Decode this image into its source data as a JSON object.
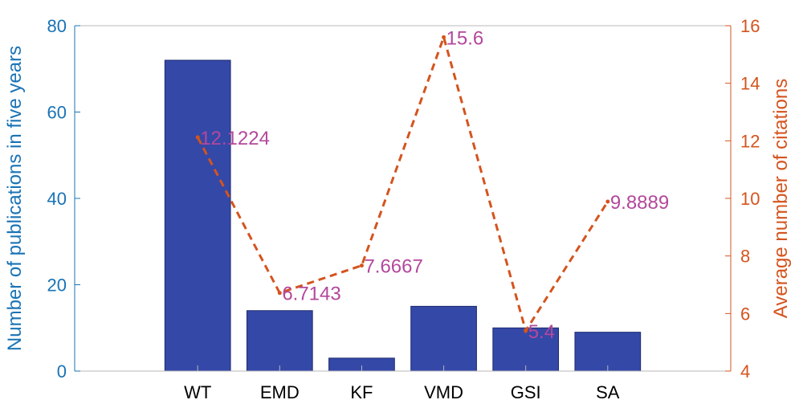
{
  "chart_data": {
    "type": "bar",
    "categories": [
      "WT",
      "EMD",
      "KF",
      "VMD",
      "GSI",
      "SA"
    ],
    "title": "",
    "xlabel": "",
    "series": [
      {
        "name": "Number of publications in five years",
        "type": "bar",
        "axis": "left",
        "values": [
          72,
          14,
          3,
          15,
          10,
          9
        ],
        "color": "#3448a8"
      },
      {
        "name": "Average number of citations",
        "type": "line",
        "axis": "right",
        "style": "dashed",
        "values": [
          12.1224,
          6.7143,
          7.6667,
          15.6,
          5.4,
          9.8889
        ],
        "labels": [
          "12.1224",
          "6.7143",
          "7.6667",
          "15.6",
          "5.4",
          "9.8889"
        ],
        "color": "#d4541e",
        "label_color": "#b3489c"
      }
    ],
    "y_left": {
      "label": "Number of publications in five years",
      "ylim": [
        0,
        80
      ],
      "ticks": [
        0,
        20,
        40,
        60,
        80
      ],
      "color": "#1a73b5"
    },
    "y_right": {
      "label": "Average number of citations",
      "ylim": [
        4,
        16
      ],
      "ticks": [
        4,
        6,
        8,
        10,
        12,
        14,
        16
      ],
      "color": "#d4541e"
    },
    "grid": false
  }
}
